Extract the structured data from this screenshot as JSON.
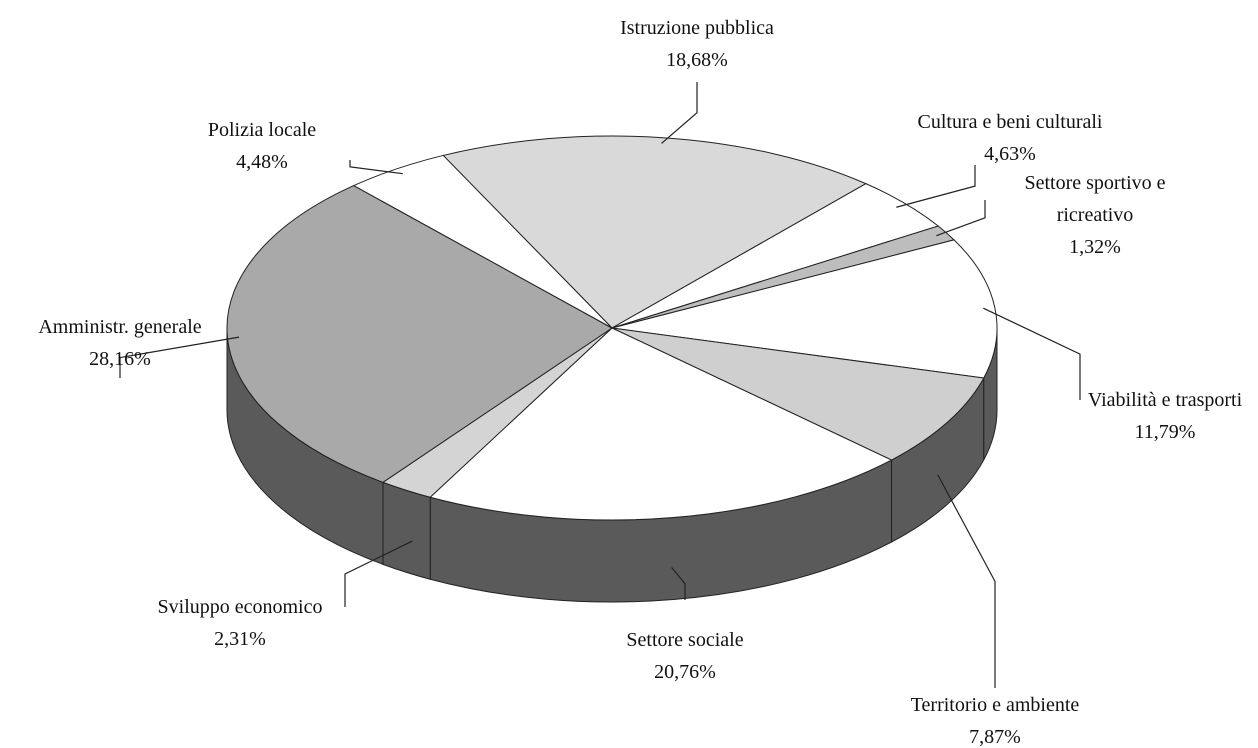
{
  "chart_data": {
    "type": "pie",
    "categories": [
      "Istruzione pubblica",
      "Cultura e beni culturali",
      "Settore sportivo e ricreativo",
      "Viabilità e trasporti",
      "Territorio e ambiente",
      "Settore sociale",
      "Sviluppo economico",
      "Amministr. generale",
      "Polizia locale"
    ],
    "values": [
      18.68,
      4.63,
      1.32,
      11.79,
      7.87,
      20.76,
      2.31,
      28.16,
      4.48
    ],
    "value_labels": [
      "18,68%",
      "4,63%",
      "1,32%",
      "11,79%",
      "7,87%",
      "20,76%",
      "2,31%",
      "28,16%",
      "4,48%"
    ],
    "colors": [
      "#d9d9d9",
      "#ffffff",
      "#bdbdbd",
      "#ffffff",
      "#cfcfcf",
      "#ffffff",
      "#d4d4d4",
      "#a9a9a9",
      "#ffffff"
    ],
    "side_color": "#5a5a5a"
  }
}
